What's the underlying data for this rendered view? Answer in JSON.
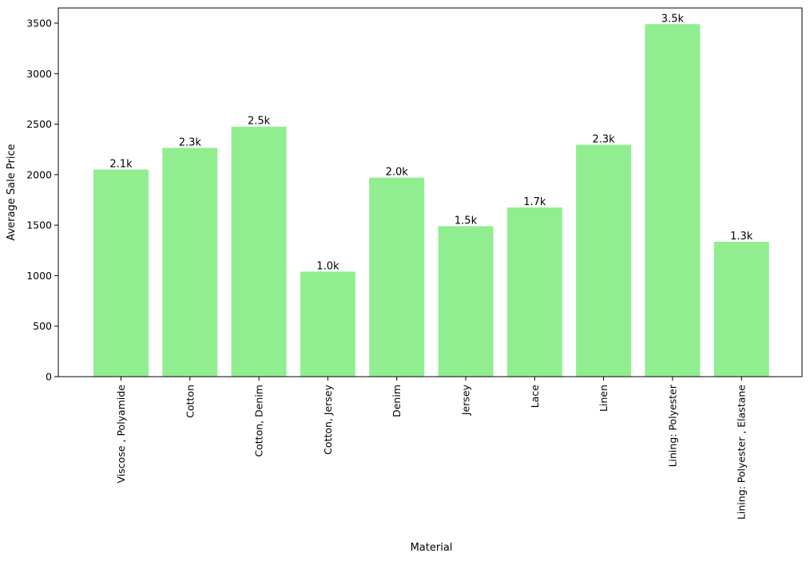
{
  "chart_data": {
    "type": "bar",
    "xlabel": "Material",
    "ylabel": "Average Sale Price",
    "ylim": [
      0,
      3650
    ],
    "yticks": [
      0,
      500,
      1000,
      1500,
      2000,
      2500,
      3000,
      3500
    ],
    "grid": false,
    "bar_color": "#90ee90",
    "categories": [
      "Viscose , Polyamide",
      "Cotton",
      "Cotton, Denim",
      "Cotton, Jersey",
      "Denim",
      "Jersey",
      "Lace",
      "Linen",
      "Lining: Polyester",
      "Lining: Polyester , Elastane"
    ],
    "values": [
      2050,
      2265,
      2475,
      1040,
      1970,
      1490,
      1675,
      2295,
      3490,
      1335
    ],
    "data_labels": [
      "2.1k",
      "2.3k",
      "2.5k",
      "1.0k",
      "2.0k",
      "1.5k",
      "1.7k",
      "2.3k",
      "3.5k",
      "1.3k"
    ]
  }
}
